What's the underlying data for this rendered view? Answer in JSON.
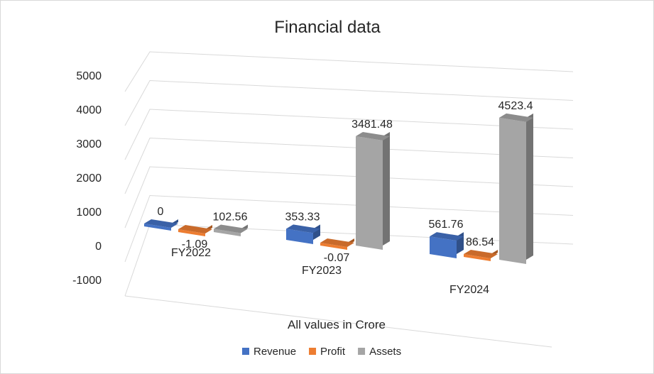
{
  "chart_data": {
    "type": "bar",
    "title": "Financial data",
    "xlabel": "All values in Crore",
    "ylabel": "",
    "categories": [
      "FY2022",
      "FY2023",
      "FY2024"
    ],
    "series": [
      {
        "name": "Revenue",
        "values": [
          0,
          353.33,
          561.76
        ],
        "labels": [
          "0",
          "353.33",
          "561.76"
        ],
        "color": "#4472c4"
      },
      {
        "name": "Profit",
        "values": [
          -1.09,
          -0.07,
          86.54
        ],
        "labels": [
          "-1.09",
          "-0.07",
          "86.54"
        ],
        "color": "#ed7d31"
      },
      {
        "name": "Assets",
        "values": [
          102.56,
          3481.48,
          4523.4
        ],
        "labels": [
          "102.56",
          "3481.48",
          "4523.4"
        ],
        "color": "#a5a5a5"
      }
    ],
    "ylim": [
      -1000,
      5000
    ],
    "yticks": [
      "5000",
      "4000",
      "3000",
      "2000",
      "1000",
      "0",
      "-1000"
    ],
    "grid": true,
    "legend": "bottom",
    "style": "3d-clustered-column"
  }
}
